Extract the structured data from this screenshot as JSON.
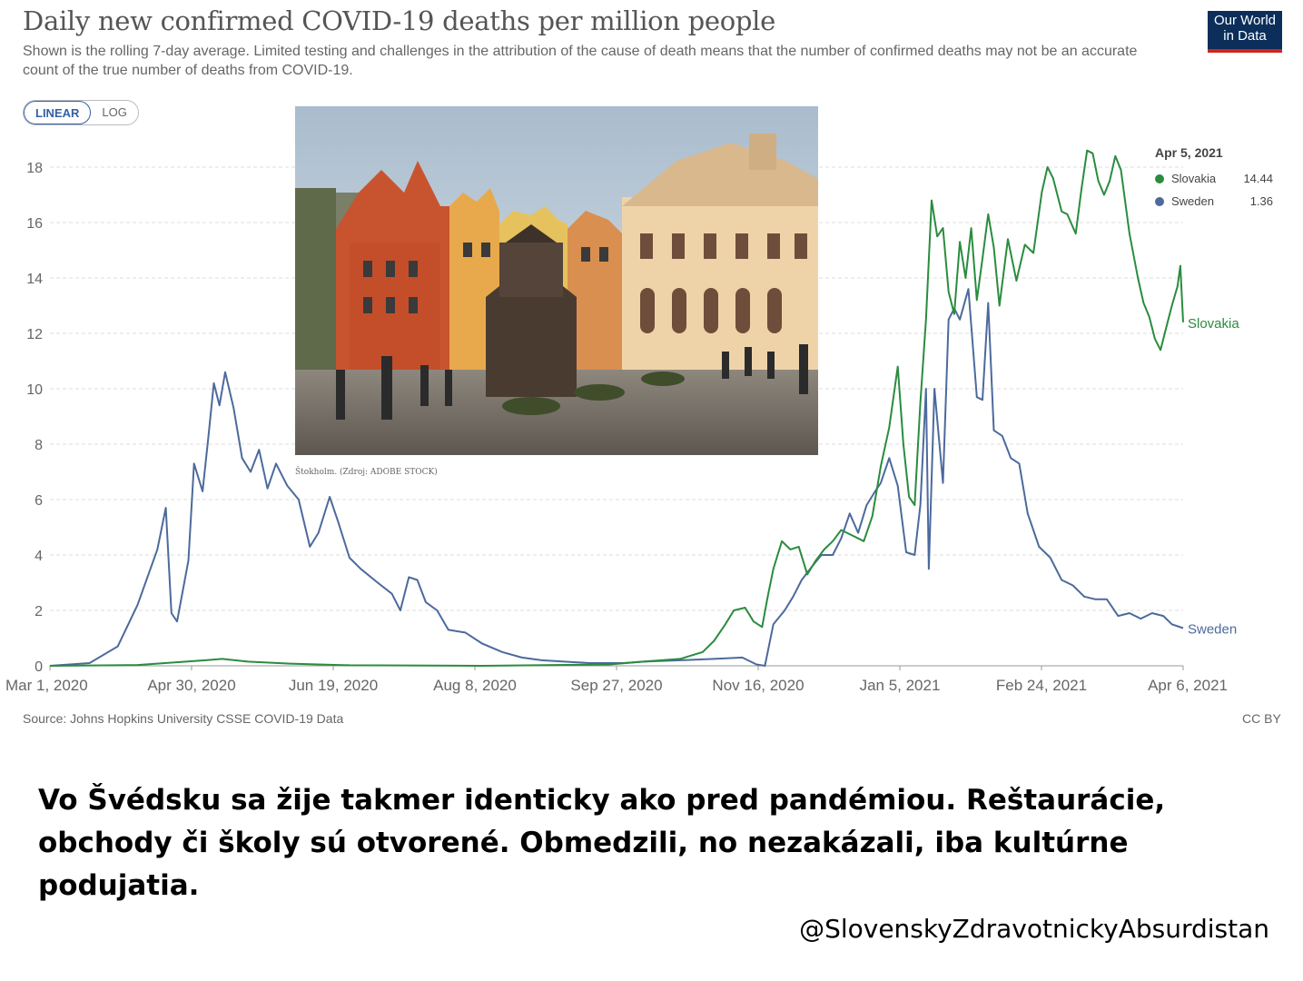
{
  "header": {
    "title": "Daily new confirmed COVID-19 deaths per million people",
    "subtitle": "Shown is the rolling 7-day average. Limited testing and challenges in the attribution of the cause of death means that the number of confirmed deaths may not be an accurate count of the true number of deaths from COVID-19.",
    "logo_line1": "Our World",
    "logo_line2": "in Data"
  },
  "toggle": {
    "linear": "LINEAR",
    "log": "LOG"
  },
  "photo": {
    "caption": "Štokholm. (Zdroj: ADOBE STOCK)"
  },
  "legend": {
    "date": "Apr 5, 2021",
    "items": [
      {
        "name": "Slovakia",
        "value": "14.44",
        "color": "#2a8c3e"
      },
      {
        "name": "Sweden",
        "value": "1.36",
        "color": "#4c6a9c"
      }
    ]
  },
  "footer": {
    "source": "Source: Johns Hopkins University CSSE COVID-19 Data",
    "license": "CC BY"
  },
  "body_text": "Vo Švédsku sa žije takmer identicky ako pred pandémiou. Reštaurácie, obchody či školy sú otvorené. Obmedzili, no nezakázali, iba kultúrne podujatia.",
  "handle": "@SlovenskyZdravotnickyAbsurdistan",
  "chart_data": {
    "type": "line",
    "title": "Daily new confirmed COVID-19 deaths per million people",
    "x_start": "2020-03-01",
    "x_end": "2021-04-06",
    "x_ticks": [
      "Mar 1, 2020",
      "Apr 30, 2020",
      "Jun 19, 2020",
      "Aug 8, 2020",
      "Sep 27, 2020",
      "Nov 16, 2020",
      "Jan 5, 2021",
      "Feb 24, 2021",
      "Apr 6, 2021"
    ],
    "y_ticks": [
      0,
      2,
      4,
      6,
      8,
      10,
      12,
      14,
      16,
      18
    ],
    "ylim": [
      0,
      18
    ],
    "grid": true,
    "series": [
      {
        "name": "Sweden",
        "color": "#4c6a9c",
        "label": "Sweden",
        "points": [
          [
            "2020-03-01",
            0
          ],
          [
            "2020-03-15",
            0.1
          ],
          [
            "2020-03-25",
            0.7
          ],
          [
            "2020-04-01",
            2.2
          ],
          [
            "2020-04-08",
            4.2
          ],
          [
            "2020-04-11",
            5.7
          ],
          [
            "2020-04-13",
            1.9
          ],
          [
            "2020-04-15",
            1.6
          ],
          [
            "2020-04-19",
            3.8
          ],
          [
            "2020-04-21",
            7.3
          ],
          [
            "2020-04-24",
            6.3
          ],
          [
            "2020-04-26",
            8.2
          ],
          [
            "2020-04-28",
            10.2
          ],
          [
            "2020-04-30",
            9.4
          ],
          [
            "2020-05-02",
            10.6
          ],
          [
            "2020-05-05",
            9.3
          ],
          [
            "2020-05-08",
            7.5
          ],
          [
            "2020-05-11",
            7.0
          ],
          [
            "2020-05-14",
            7.8
          ],
          [
            "2020-05-17",
            6.4
          ],
          [
            "2020-05-20",
            7.3
          ],
          [
            "2020-05-24",
            6.5
          ],
          [
            "2020-05-28",
            6.0
          ],
          [
            "2020-06-01",
            4.3
          ],
          [
            "2020-06-04",
            4.8
          ],
          [
            "2020-06-08",
            6.1
          ],
          [
            "2020-06-11",
            5.2
          ],
          [
            "2020-06-15",
            3.9
          ],
          [
            "2020-06-19",
            3.5
          ],
          [
            "2020-06-25",
            3.0
          ],
          [
            "2020-06-30",
            2.6
          ],
          [
            "2020-07-03",
            2.0
          ],
          [
            "2020-07-06",
            3.2
          ],
          [
            "2020-07-09",
            3.1
          ],
          [
            "2020-07-12",
            2.3
          ],
          [
            "2020-07-16",
            2.0
          ],
          [
            "2020-07-20",
            1.3
          ],
          [
            "2020-07-26",
            1.2
          ],
          [
            "2020-08-01",
            0.8
          ],
          [
            "2020-08-08",
            0.5
          ],
          [
            "2020-08-15",
            0.3
          ],
          [
            "2020-08-22",
            0.2
          ],
          [
            "2020-08-30",
            0.15
          ],
          [
            "2020-09-08",
            0.1
          ],
          [
            "2020-09-20",
            0.1
          ],
          [
            "2020-09-27",
            0.15
          ],
          [
            "2020-10-10",
            0.2
          ],
          [
            "2020-10-22",
            0.25
          ],
          [
            "2020-11-01",
            0.3
          ],
          [
            "2020-11-06",
            0.05
          ],
          [
            "2020-11-09",
            0.0
          ],
          [
            "2020-11-12",
            1.5
          ],
          [
            "2020-11-16",
            2.0
          ],
          [
            "2020-11-19",
            2.5
          ],
          [
            "2020-11-22",
            3.1
          ],
          [
            "2020-11-25",
            3.5
          ],
          [
            "2020-11-29",
            4.0
          ],
          [
            "2020-12-03",
            4.0
          ],
          [
            "2020-12-06",
            4.6
          ],
          [
            "2020-12-09",
            5.5
          ],
          [
            "2020-12-12",
            4.8
          ],
          [
            "2020-12-15",
            5.8
          ],
          [
            "2020-12-18",
            6.3
          ],
          [
            "2020-12-20",
            6.6
          ],
          [
            "2020-12-23",
            7.5
          ],
          [
            "2020-12-26",
            6.5
          ],
          [
            "2020-12-29",
            4.1
          ],
          [
            "2021-01-01",
            4.0
          ],
          [
            "2021-01-03",
            5.8
          ],
          [
            "2021-01-05",
            10.0
          ],
          [
            "2021-01-06",
            3.5
          ],
          [
            "2021-01-08",
            10.0
          ],
          [
            "2021-01-11",
            6.6
          ],
          [
            "2021-01-13",
            12.5
          ],
          [
            "2021-01-15",
            12.9
          ],
          [
            "2021-01-17",
            12.5
          ],
          [
            "2021-01-20",
            13.6
          ],
          [
            "2021-01-23",
            9.7
          ],
          [
            "2021-01-25",
            9.6
          ],
          [
            "2021-01-27",
            13.1
          ],
          [
            "2021-01-29",
            8.5
          ],
          [
            "2021-02-01",
            8.3
          ],
          [
            "2021-02-04",
            7.5
          ],
          [
            "2021-02-07",
            7.3
          ],
          [
            "2021-02-10",
            5.5
          ],
          [
            "2021-02-14",
            4.3
          ],
          [
            "2021-02-18",
            3.9
          ],
          [
            "2021-02-22",
            3.1
          ],
          [
            "2021-02-26",
            2.9
          ],
          [
            "2021-03-02",
            2.5
          ],
          [
            "2021-03-06",
            2.4
          ],
          [
            "2021-03-10",
            2.4
          ],
          [
            "2021-03-14",
            1.8
          ],
          [
            "2021-03-18",
            1.9
          ],
          [
            "2021-03-22",
            1.7
          ],
          [
            "2021-03-26",
            1.9
          ],
          [
            "2021-03-30",
            1.8
          ],
          [
            "2021-04-02",
            1.5
          ],
          [
            "2021-04-06",
            1.36
          ]
        ]
      },
      {
        "name": "Slovakia",
        "color": "#2a8c3e",
        "label": "Slovakia",
        "points": [
          [
            "2020-03-01",
            0
          ],
          [
            "2020-04-01",
            0.03
          ],
          [
            "2020-04-25",
            0.2
          ],
          [
            "2020-05-01",
            0.25
          ],
          [
            "2020-05-10",
            0.15
          ],
          [
            "2020-05-25",
            0.08
          ],
          [
            "2020-06-15",
            0.02
          ],
          [
            "2020-08-01",
            0
          ],
          [
            "2020-09-15",
            0.05
          ],
          [
            "2020-09-27",
            0.15
          ],
          [
            "2020-10-10",
            0.25
          ],
          [
            "2020-10-18",
            0.5
          ],
          [
            "2020-10-22",
            0.9
          ],
          [
            "2020-10-26",
            1.5
          ],
          [
            "2020-10-29",
            2.0
          ],
          [
            "2020-11-02",
            2.1
          ],
          [
            "2020-11-05",
            1.6
          ],
          [
            "2020-11-08",
            1.4
          ],
          [
            "2020-11-10",
            2.5
          ],
          [
            "2020-11-12",
            3.5
          ],
          [
            "2020-11-15",
            4.5
          ],
          [
            "2020-11-18",
            4.2
          ],
          [
            "2020-11-21",
            4.3
          ],
          [
            "2020-11-24",
            3.3
          ],
          [
            "2020-11-27",
            3.8
          ],
          [
            "2020-11-30",
            4.2
          ],
          [
            "2020-12-03",
            4.5
          ],
          [
            "2020-12-06",
            4.9
          ],
          [
            "2020-12-10",
            4.7
          ],
          [
            "2020-12-14",
            4.5
          ],
          [
            "2020-12-17",
            5.4
          ],
          [
            "2020-12-20",
            7.2
          ],
          [
            "2020-12-23",
            8.6
          ],
          [
            "2020-12-26",
            10.8
          ],
          [
            "2020-12-28",
            8.0
          ],
          [
            "2020-12-30",
            6.1
          ],
          [
            "2021-01-01",
            5.8
          ],
          [
            "2021-01-03",
            9.5
          ],
          [
            "2021-01-05",
            12.5
          ],
          [
            "2021-01-07",
            16.8
          ],
          [
            "2021-01-09",
            15.5
          ],
          [
            "2021-01-11",
            15.8
          ],
          [
            "2021-01-13",
            13.5
          ],
          [
            "2021-01-15",
            12.7
          ],
          [
            "2021-01-17",
            15.3
          ],
          [
            "2021-01-19",
            14.0
          ],
          [
            "2021-01-21",
            15.8
          ],
          [
            "2021-01-23",
            13.2
          ],
          [
            "2021-01-25",
            14.7
          ],
          [
            "2021-01-27",
            16.3
          ],
          [
            "2021-01-29",
            15.1
          ],
          [
            "2021-01-31",
            13.0
          ],
          [
            "2021-02-03",
            15.4
          ],
          [
            "2021-02-06",
            13.9
          ],
          [
            "2021-02-09",
            15.2
          ],
          [
            "2021-02-12",
            14.9
          ],
          [
            "2021-02-15",
            17.1
          ],
          [
            "2021-02-17",
            18.0
          ],
          [
            "2021-02-19",
            17.6
          ],
          [
            "2021-02-22",
            16.4
          ],
          [
            "2021-02-24",
            16.3
          ],
          [
            "2021-02-27",
            15.6
          ],
          [
            "2021-03-01",
            17.2
          ],
          [
            "2021-03-03",
            18.6
          ],
          [
            "2021-03-05",
            18.5
          ],
          [
            "2021-03-07",
            17.5
          ],
          [
            "2021-03-09",
            17.0
          ],
          [
            "2021-03-11",
            17.5
          ],
          [
            "2021-03-13",
            18.4
          ],
          [
            "2021-03-15",
            17.9
          ],
          [
            "2021-03-18",
            15.6
          ],
          [
            "2021-03-21",
            14.0
          ],
          [
            "2021-03-23",
            13.1
          ],
          [
            "2021-03-25",
            12.6
          ],
          [
            "2021-03-27",
            11.8
          ],
          [
            "2021-03-29",
            11.4
          ],
          [
            "2021-03-31",
            12.2
          ],
          [
            "2021-04-02",
            13.0
          ],
          [
            "2021-04-04",
            13.7
          ],
          [
            "2021-04-05",
            14.44
          ],
          [
            "2021-04-06",
            12.4
          ]
        ]
      }
    ]
  }
}
